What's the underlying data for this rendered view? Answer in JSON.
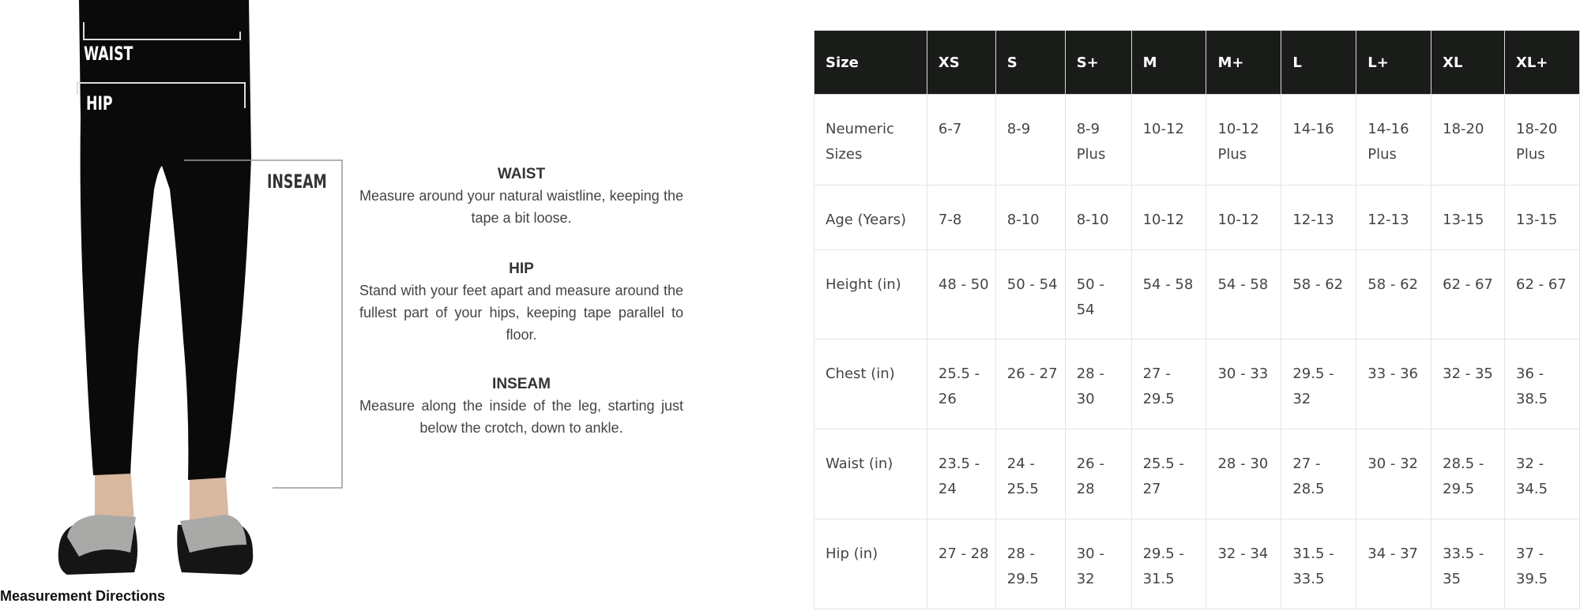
{
  "figure": {
    "labels": {
      "waist": "WAIST",
      "hip": "HIP",
      "inseam": "INSEAM"
    },
    "caption": "Measurement Directions"
  },
  "directions": [
    {
      "title": "WAIST",
      "text": "Measure around your natural waistline, keeping the tape a bit loose."
    },
    {
      "title": "HIP",
      "text": "Stand with your feet apart and measure around the fullest part of your hips, keeping tape parallel to floor."
    },
    {
      "title": "INSEAM",
      "text": "Measure along the inside of the leg, starting just below the crotch, down to ankle."
    }
  ],
  "size_table": {
    "header": [
      "Size",
      "XS",
      "S",
      "S+",
      "M",
      "M+",
      "L",
      "L+",
      "XL",
      "XL+"
    ],
    "rows": [
      [
        "Neumeric Sizes",
        "6-7",
        "8-9",
        "8-9 Plus",
        "10-12",
        "10-12 Plus",
        "14-16",
        "14-16 Plus",
        "18-20",
        "18-20 Plus"
      ],
      [
        "Age (Years)",
        "7-8",
        "8-10",
        "8-10",
        "10-12",
        "10-12",
        "12-13",
        "12-13",
        "13-15",
        "13-15"
      ],
      [
        "Height (in)",
        "48 - 50",
        "50 - 54",
        "50 - 54",
        "54 - 58",
        "54 - 58",
        "58 - 62",
        "58 - 62",
        "62 - 67",
        "62 - 67"
      ],
      [
        "Chest (in)",
        "25.5 - 26",
        "26 - 27",
        "28 - 30",
        "27 - 29.5",
        "30 - 33",
        "29.5 - 32",
        "33 - 36",
        "32 - 35",
        "36 - 38.5"
      ],
      [
        "Waist (in)",
        "23.5 - 24",
        "24 - 25.5",
        "26 - 28",
        "25.5 - 27",
        "28 - 30",
        "27 - 28.5",
        "30 - 32",
        "28.5 - 29.5",
        "32 - 34.5"
      ],
      [
        "Hip (in)",
        "27 - 28",
        "28 - 29.5",
        "30 - 32",
        "29.5 - 31.5",
        "32 - 34",
        "31.5 - 33.5",
        "34 - 37",
        "33.5 - 35",
        "37 - 39.5"
      ]
    ],
    "header_bg": "#1a1c1a"
  }
}
